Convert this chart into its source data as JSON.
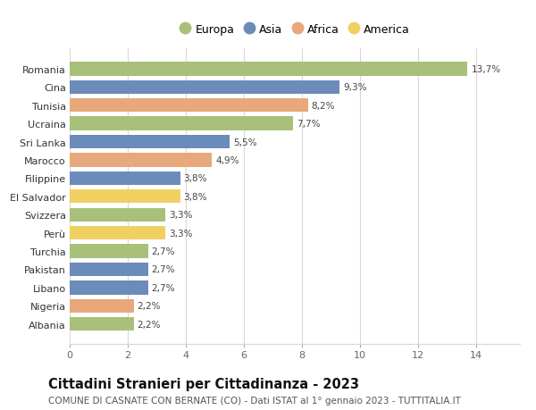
{
  "categories": [
    "Romania",
    "Cina",
    "Tunisia",
    "Ucraina",
    "Sri Lanka",
    "Marocco",
    "Filippine",
    "El Salvador",
    "Svizzera",
    "Perù",
    "Turchia",
    "Pakistan",
    "Libano",
    "Nigeria",
    "Albania"
  ],
  "values": [
    13.7,
    9.3,
    8.2,
    7.7,
    5.5,
    4.9,
    3.8,
    3.8,
    3.3,
    3.3,
    2.7,
    2.7,
    2.7,
    2.2,
    2.2
  ],
  "labels": [
    "13,7%",
    "9,3%",
    "8,2%",
    "7,7%",
    "5,5%",
    "4,9%",
    "3,8%",
    "3,8%",
    "3,3%",
    "3,3%",
    "2,7%",
    "2,7%",
    "2,7%",
    "2,2%",
    "2,2%"
  ],
  "continents": [
    "Europa",
    "Asia",
    "Africa",
    "Europa",
    "Asia",
    "Africa",
    "Asia",
    "America",
    "Europa",
    "America",
    "Europa",
    "Asia",
    "Asia",
    "Africa",
    "Europa"
  ],
  "colors": {
    "Europa": "#a8c07a",
    "Asia": "#6b8cba",
    "Africa": "#e8a87c",
    "America": "#f0d060"
  },
  "legend_order": [
    "Europa",
    "Asia",
    "Africa",
    "America"
  ],
  "title": "Cittadini Stranieri per Cittadinanza - 2023",
  "subtitle": "COMUNE DI CASNATE CON BERNATE (CO) - Dati ISTAT al 1° gennaio 2023 - TUTTITALIA.IT",
  "xlim": [
    0,
    15.5
  ],
  "xticks": [
    0,
    2,
    4,
    6,
    8,
    10,
    12,
    14
  ],
  "background_color": "#ffffff",
  "grid_color": "#d8d8d8",
  "bar_height": 0.75,
  "label_fontsize": 7.5,
  "title_fontsize": 10.5,
  "subtitle_fontsize": 7.5,
  "tick_fontsize": 8,
  "legend_fontsize": 9
}
